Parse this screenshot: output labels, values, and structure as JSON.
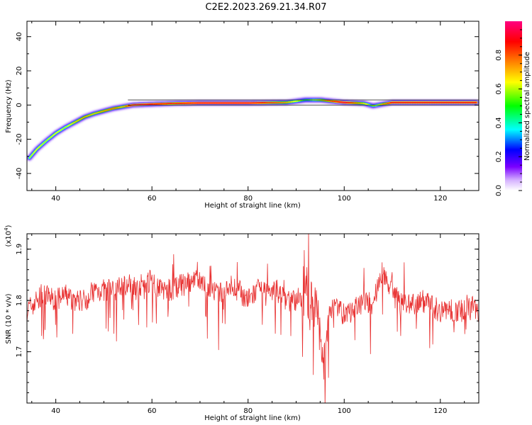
{
  "page": {
    "title": "C2E2.2023.269.21.34.R07"
  },
  "chart_data": [
    {
      "type": "heatmap",
      "xlabel": "Height of straight line (km)",
      "ylabel": "Frequency (Hz)",
      "xlim": [
        34,
        128
      ],
      "ylim": [
        -50,
        49
      ],
      "x_ticks": [
        40,
        60,
        80,
        100,
        120
      ],
      "y_ticks": [
        -40,
        -20,
        0,
        20,
        40
      ],
      "colorbar": {
        "label": "Normalized spectral amplitude",
        "range": [
          0.0,
          1.0
        ],
        "ticks": [
          0.0,
          0.2,
          0.4,
          0.6,
          0.8
        ],
        "colormap": "rainbow: white-violet-blue-cyan-green-yellow-orange-red-magenta"
      },
      "ridge": {
        "x": [
          34.5,
          36,
          38,
          40,
          42,
          44,
          46,
          48,
          50,
          52,
          54,
          56,
          60,
          65,
          70,
          80,
          88,
          92,
          95,
          100,
          104,
          106,
          110,
          120,
          127.5
        ],
        "y": [
          -31,
          -26,
          -21,
          -16.5,
          -13,
          -10,
          -7,
          -5,
          -3.5,
          -2,
          -1,
          0,
          0.5,
          1,
          1.2,
          1.2,
          1.5,
          3,
          3,
          1.5,
          1,
          -0.5,
          1.5,
          1.5,
          1.5
        ],
        "amplitude": [
          0.6,
          0.65,
          0.6,
          0.65,
          0.6,
          0.7,
          0.75,
          0.7,
          0.75,
          0.8,
          0.7,
          0.95,
          0.9,
          0.85,
          0.95,
          0.95,
          0.75,
          0.5,
          0.7,
          0.95,
          0.7,
          0.55,
          0.9,
          0.9,
          0.9
        ]
      }
    },
    {
      "type": "line",
      "xlabel": "Height of straight line (km)",
      "ylabel": "SNR (10 * v/v)",
      "y_multiplier": "(x10",
      "y_multiplier_exp": "4",
      "xlim": [
        34,
        128
      ],
      "ylim": [
        1.6,
        1.93
      ],
      "x_ticks": [
        40,
        60,
        80,
        100,
        120
      ],
      "y_ticks": [
        1.7,
        1.8,
        1.9
      ],
      "series": [
        {
          "color": "#e83030",
          "x": [
            34,
            36,
            38,
            40,
            42,
            44,
            46,
            48,
            50,
            52,
            54,
            56,
            58,
            60,
            62,
            64,
            66,
            68,
            70,
            72,
            74,
            76,
            78,
            80,
            82,
            84,
            86,
            88,
            90,
            92,
            94,
            95,
            96,
            97,
            98,
            100,
            102,
            104,
            106,
            107,
            108,
            110,
            112,
            114,
            116,
            118,
            120,
            122,
            124,
            126,
            128
          ],
          "y": [
            1.78,
            1.8,
            1.81,
            1.8,
            1.81,
            1.8,
            1.8,
            1.82,
            1.82,
            1.82,
            1.83,
            1.83,
            1.83,
            1.84,
            1.82,
            1.82,
            1.83,
            1.83,
            1.84,
            1.82,
            1.81,
            1.83,
            1.82,
            1.8,
            1.82,
            1.81,
            1.82,
            1.8,
            1.8,
            1.82,
            1.78,
            1.74,
            1.68,
            1.78,
            1.8,
            1.77,
            1.78,
            1.8,
            1.79,
            1.83,
            1.86,
            1.81,
            1.8,
            1.79,
            1.8,
            1.79,
            1.78,
            1.78,
            1.78,
            1.79,
            1.78
          ]
        }
      ]
    }
  ]
}
